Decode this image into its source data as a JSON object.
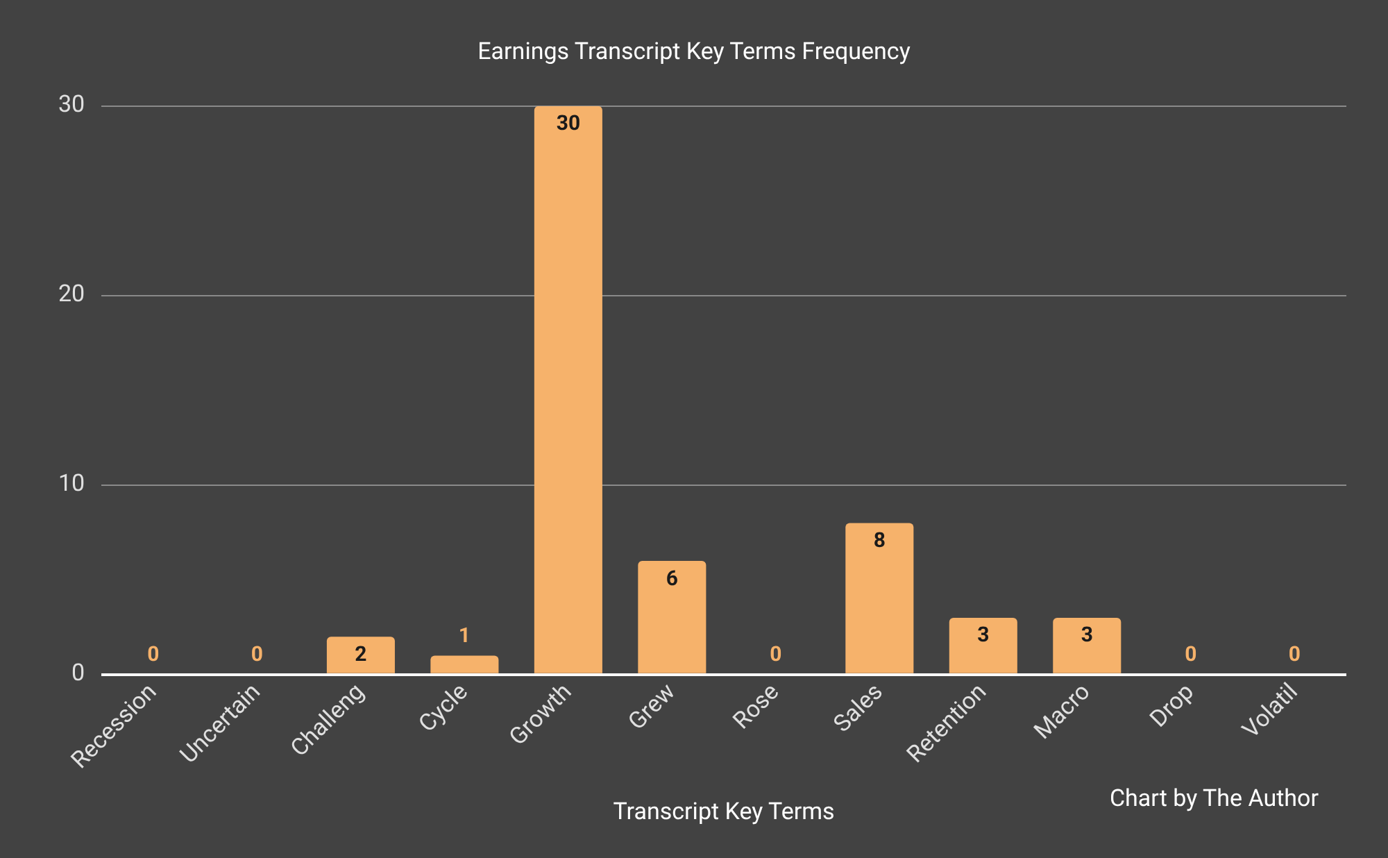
{
  "chart_data": {
    "type": "bar",
    "title": "Earnings Transcript Key Terms Frequency",
    "xlabel": "Transcript Key Terms",
    "categories": [
      "Recession",
      "Uncertain",
      "Challeng",
      "Cycle",
      "Growth",
      "Grew",
      "Rose",
      "Sales",
      "Retention",
      "Macro",
      "Drop",
      "Volatil"
    ],
    "values": [
      0,
      0,
      2,
      1,
      30,
      6,
      0,
      8,
      3,
      3,
      0,
      0
    ],
    "color": "#f6b26b",
    "ylim": [
      0,
      30
    ],
    "yticks": [
      0,
      10,
      20,
      30
    ],
    "grid": "y",
    "legend": false,
    "data_labels": true,
    "annotations": [
      "Chart by The Author"
    ]
  }
}
